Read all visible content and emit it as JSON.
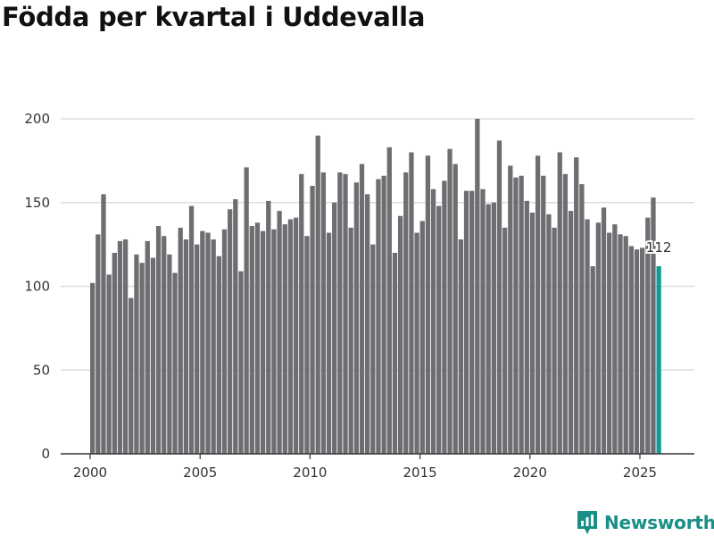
{
  "chart_data": {
    "type": "bar",
    "title": "Födda per kvartal i Uddevalla",
    "xlabel": "",
    "ylabel": "",
    "ylim": [
      0,
      200
    ],
    "y_ticks": [
      "0",
      "50",
      "100",
      "150",
      "200"
    ],
    "x_ticks": [
      "2000",
      "2005",
      "2010",
      "2015",
      "2020",
      "2025"
    ],
    "start_year": 2000,
    "periods_per_year": 4,
    "highlight_label": "112",
    "colors": {
      "bar": "#6e6e72",
      "highlight": "#139c91",
      "grid": "#dddddd",
      "axis": "#333333"
    },
    "series": [
      {
        "name": "Födda",
        "values": [
          102,
          131,
          155,
          107,
          120,
          127,
          128,
          93,
          119,
          114,
          127,
          117,
          136,
          130,
          119,
          108,
          135,
          128,
          148,
          125,
          133,
          132,
          128,
          118,
          134,
          146,
          152,
          109,
          171,
          136,
          138,
          133,
          151,
          134,
          145,
          137,
          140,
          141,
          167,
          130,
          160,
          190,
          168,
          132,
          150,
          168,
          167,
          135,
          162,
          173,
          155,
          125,
          164,
          166,
          183,
          120,
          142,
          168,
          180,
          132,
          139,
          178,
          158,
          148,
          163,
          182,
          173,
          128,
          157,
          157,
          200,
          158,
          149,
          150,
          187,
          135,
          172,
          165,
          166,
          151,
          144,
          178,
          166,
          143,
          135,
          180,
          167,
          145,
          177,
          161,
          140,
          112,
          138,
          147,
          132,
          137,
          131,
          130,
          124,
          122,
          123,
          141,
          153,
          112
        ]
      }
    ]
  },
  "brand": {
    "name": "Newsworthy",
    "icon": "newsworthy-logo-icon"
  }
}
